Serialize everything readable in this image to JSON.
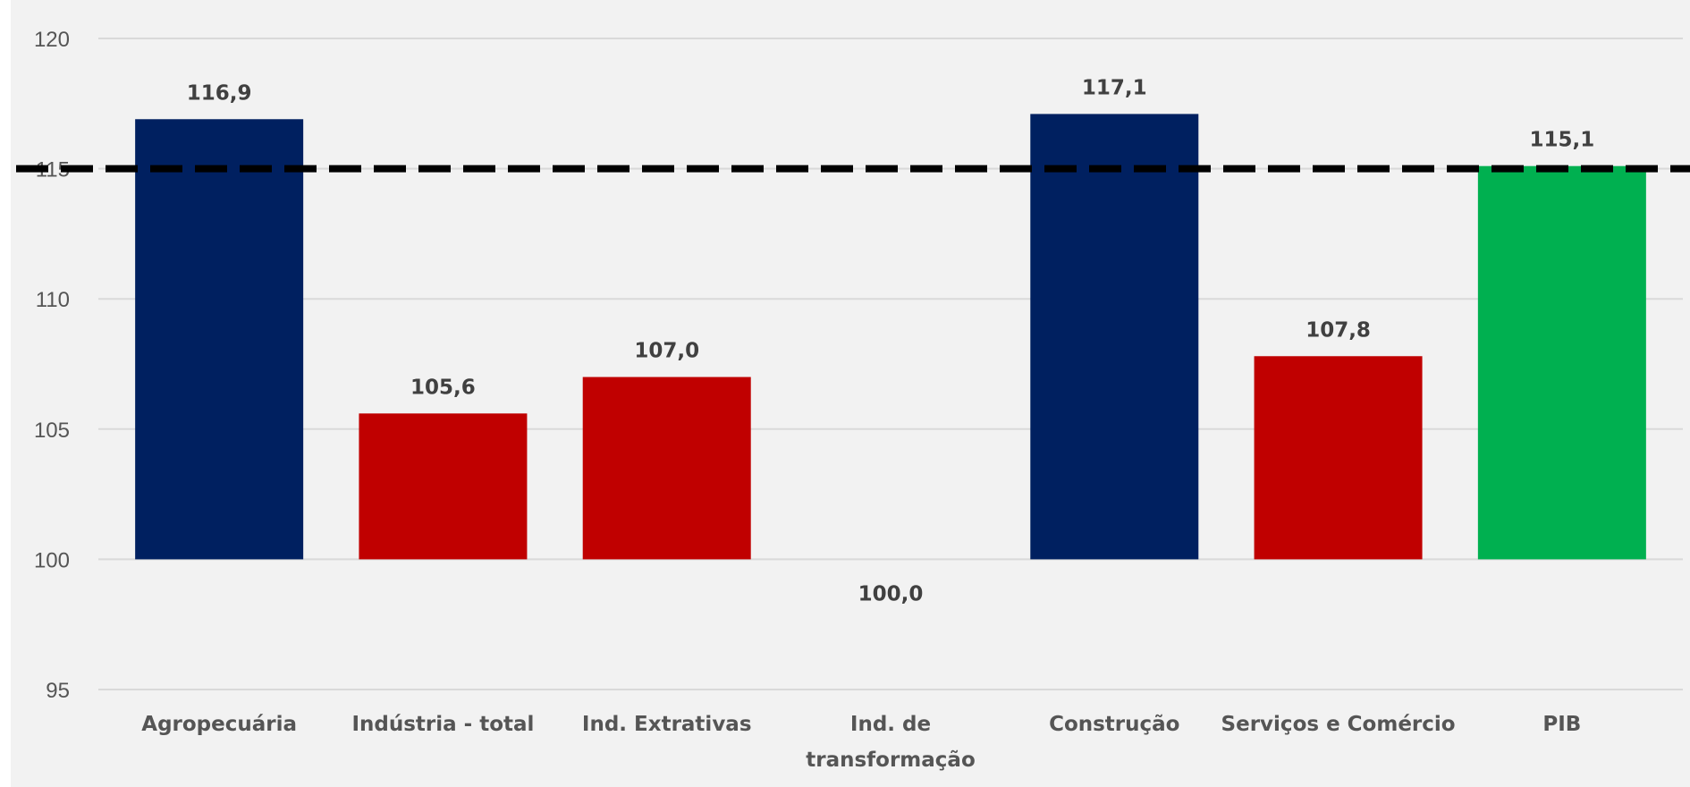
{
  "chart_data": {
    "type": "bar",
    "categories": [
      "Agropecuária",
      "Indústria - total",
      "Ind. Extrativas",
      "Ind. de transformação",
      "Construção",
      "Serviços e Comércio",
      "PIB"
    ],
    "category_lines": [
      [
        "Agropecuária"
      ],
      [
        "Indústria - total"
      ],
      [
        "Ind. Extrativas"
      ],
      [
        "Ind. de",
        "transformação"
      ],
      [
        "Construção"
      ],
      [
        "Serviços e Comércio"
      ],
      [
        "PIB"
      ]
    ],
    "values": [
      116.9,
      105.6,
      107.0,
      100.0,
      117.1,
      107.8,
      115.1
    ],
    "value_labels": [
      "116,9",
      "105,6",
      "107,0",
      "100,0",
      "117,1",
      "107,8",
      "115,1"
    ],
    "bar_colors": [
      "#002060",
      "#c00000",
      "#c00000",
      "#c00000",
      "#002060",
      "#c00000",
      "#00b050"
    ],
    "baseline": 100,
    "reference_line": {
      "value": 115,
      "style": "dashed",
      "color": "#000000"
    },
    "ylim": [
      95,
      120
    ],
    "yticks": [
      95,
      100,
      105,
      110,
      115,
      120
    ],
    "grid": true,
    "legend": "none",
    "colors": {
      "plot_background": "#f2f2f2",
      "grid": "#d9d9d9",
      "axis": "#d9d9d9"
    }
  }
}
